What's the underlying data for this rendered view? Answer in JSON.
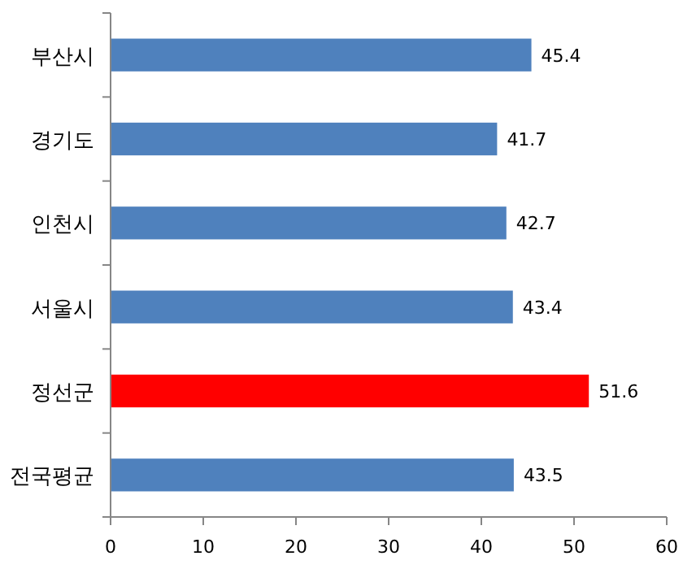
{
  "chart_data": {
    "type": "bar",
    "orientation": "horizontal",
    "categories": [
      "부산시",
      "경기도",
      "인천시",
      "서울시",
      "정선군",
      "전국평균"
    ],
    "values": [
      45.4,
      41.7,
      42.7,
      43.4,
      51.6,
      43.5
    ],
    "colors": [
      "#4f81bd",
      "#4f81bd",
      "#4f81bd",
      "#4f81bd",
      "#ff0000",
      "#4f81bd"
    ],
    "xlim": [
      0,
      60
    ],
    "xticks": [
      0,
      10,
      20,
      30,
      40,
      50,
      60
    ],
    "data_labels": true,
    "grid": false
  }
}
